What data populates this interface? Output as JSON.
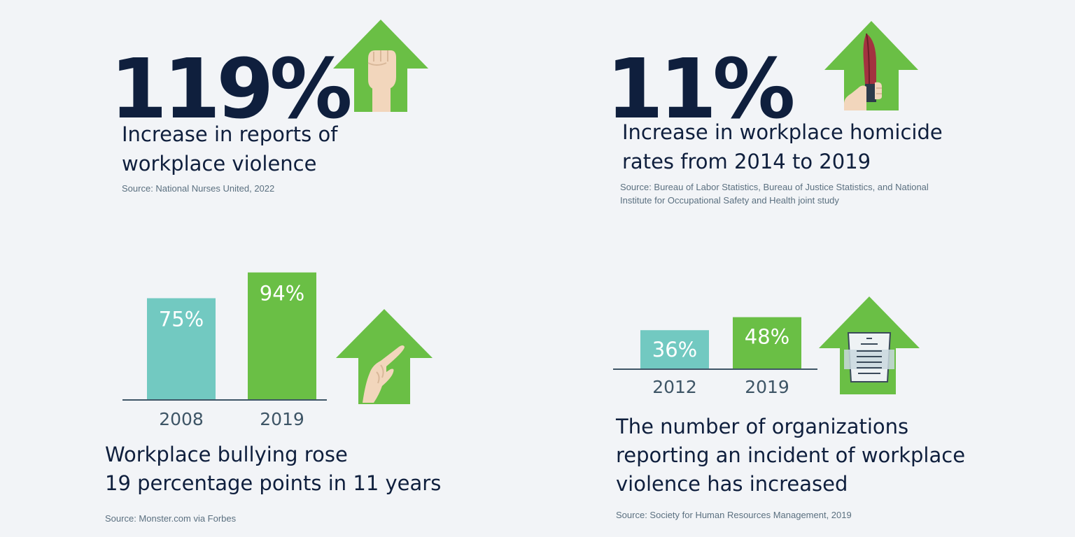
{
  "stats": [
    {
      "value": "119%",
      "lines": [
        "Increase in reports of",
        "workplace violence"
      ],
      "source": "Source: National Nurses United, 2022",
      "icon": "raised-fist-icon"
    },
    {
      "value": "11%",
      "lines": [
        "Increase in workplace homicide",
        "rates from 2014 to 2019"
      ],
      "source_lines": [
        "Source: Bureau of Labor Statistics, Bureau of Justice Statistics, and National",
        "Institute for Occupational Safety and Health joint study"
      ],
      "icon": "hand-holding-knife-icon"
    }
  ],
  "charts": {
    "bullying": {
      "lines": [
        "Workplace bullying rose",
        "19 percentage points in 11 years"
      ],
      "source": "Source: Monster.com via Forbes",
      "icon": "pointing-hand-icon"
    },
    "incidents": {
      "lines": [
        "The number of organizations",
        "reporting an incident of workplace",
        "violence has increased"
      ],
      "source": "Source: Society for Human Resources Management, 2019",
      "icon": "report-document-icon"
    }
  },
  "colors": {
    "navy": "#0f1f3d",
    "green": "#6abf45",
    "teal": "#72c9c1",
    "skin": "#f2d6bc",
    "background": "#f2f4f7"
  },
  "chart_data": [
    {
      "type": "bar",
      "categories": [
        "2008",
        "2019"
      ],
      "values": [
        75,
        94
      ],
      "value_labels": [
        "75%",
        "94%"
      ],
      "colors": [
        "#72c9c1",
        "#6abf45"
      ],
      "title": "",
      "xlabel": "",
      "ylabel": "",
      "ylim": [
        0,
        100
      ]
    },
    {
      "type": "bar",
      "categories": [
        "2012",
        "2019"
      ],
      "values": [
        36,
        48
      ],
      "value_labels": [
        "36%",
        "48%"
      ],
      "colors": [
        "#72c9c1",
        "#6abf45"
      ],
      "title": "",
      "xlabel": "",
      "ylabel": "",
      "ylim": [
        0,
        50
      ]
    }
  ]
}
